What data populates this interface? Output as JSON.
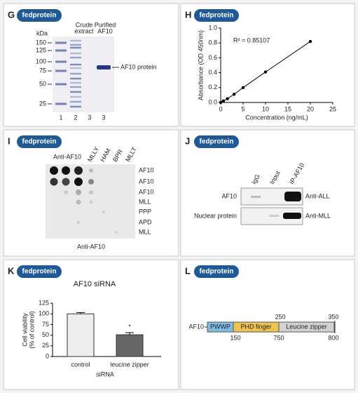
{
  "panels": {
    "G": {
      "letter": "G",
      "brand": "fedprotein",
      "kda": "kDa",
      "markers": [
        "150",
        "125",
        "100",
        "75",
        "50",
        "25"
      ],
      "header_crude": [
        "Crude",
        "extract"
      ],
      "header_purified": [
        "Purified",
        "AF10"
      ],
      "lanes": [
        "1",
        "2",
        "3",
        "3"
      ],
      "band_label": "AF10 protein"
    },
    "H": {
      "letter": "H",
      "brand": "fedprotein"
    },
    "I": {
      "letter": "I",
      "brand": "fedprotein",
      "top_label": "Anti-AF10",
      "columns": [
        "MLLY",
        "HAM",
        "BPR",
        "MLLT"
      ],
      "rows": [
        "AF10",
        "AF10",
        "AF10",
        "MLL",
        "PPP",
        "APD",
        "MLL"
      ],
      "bottom_label": "Anti-AF10"
    },
    "J": {
      "letter": "J",
      "brand": "fedprotein",
      "columns": [
        "IgG",
        "Input",
        "IP-AF10"
      ],
      "rows": [
        "AF10",
        "Nuclear protein"
      ],
      "antibodies": [
        "Anti-ALL",
        "Anti-MLL"
      ]
    },
    "K": {
      "letter": "K",
      "brand": "fedprotein"
    },
    "L": {
      "letter": "L",
      "brand": "fedprotein",
      "protein": "AF10",
      "domains": [
        "PWWP",
        "PHD finger",
        "Leucine zipper"
      ],
      "top_numbers": [
        250,
        350
      ],
      "bottom_numbers": [
        150,
        750,
        800
      ]
    }
  },
  "chart_data": [
    {
      "type": "line",
      "x": [
        0,
        0.6,
        1.5,
        3,
        5,
        10,
        20
      ],
      "values": [
        0,
        0.02,
        0.05,
        0.11,
        0.2,
        0.41,
        0.82
      ],
      "color": "#000000",
      "xlim": [
        0,
        25
      ],
      "xticks": [
        0,
        5,
        10,
        15,
        20,
        25
      ],
      "ylim": [
        0,
        1
      ],
      "yticks": [
        {
          "value": 0,
          "label": "0.0"
        },
        0.2,
        0.4,
        0.6,
        0.8,
        {
          "value": 1,
          "label": "1.0"
        }
      ],
      "xlabel": "Concentration (ng/mL)",
      "ylabel": "Absorbance (OD 450nm)",
      "annotation": "R² = 0.85107"
    },
    {
      "type": "bar",
      "title": "AF10 siRNA",
      "categories": [
        "control",
        "leucine zipper"
      ],
      "values": [
        100,
        51
      ],
      "errors": [
        3,
        5
      ],
      "colors": [
        "#eeeeee",
        "#666666"
      ],
      "ylim": [
        0,
        125
      ],
      "yticks": [
        0,
        25,
        50,
        75,
        100,
        125
      ],
      "ylabel": [
        "Cell viability",
        "(% of control)"
      ],
      "xlabel": "siRNA",
      "annotation": "*"
    }
  ]
}
